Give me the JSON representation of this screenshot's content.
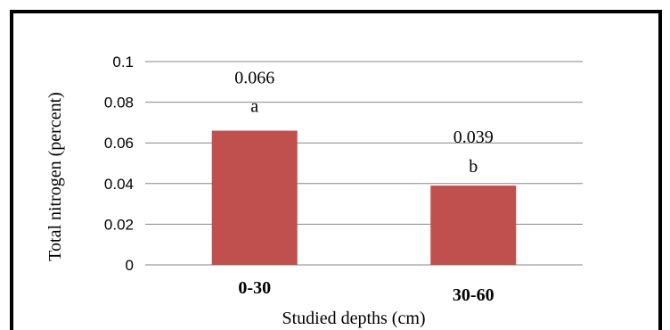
{
  "chart_data": {
    "type": "bar",
    "categories": [
      "0-30",
      "30-60"
    ],
    "values": [
      0.066,
      0.039
    ],
    "data_labels": [
      "0.066",
      "0.039"
    ],
    "significance_letters": [
      "a",
      "b"
    ],
    "xlabel": "Studied depths (cm)",
    "ylabel": "Total nitrogen (percent)",
    "ylim": [
      0,
      0.1
    ],
    "yticks": [
      "0",
      "0.02",
      "0.04",
      "0.06",
      "0.08",
      "0.1"
    ],
    "grid": "horizontal",
    "legend": "none",
    "colors": {
      "bar": "#C0504D",
      "grid": "#868686",
      "border": "#000000"
    }
  }
}
